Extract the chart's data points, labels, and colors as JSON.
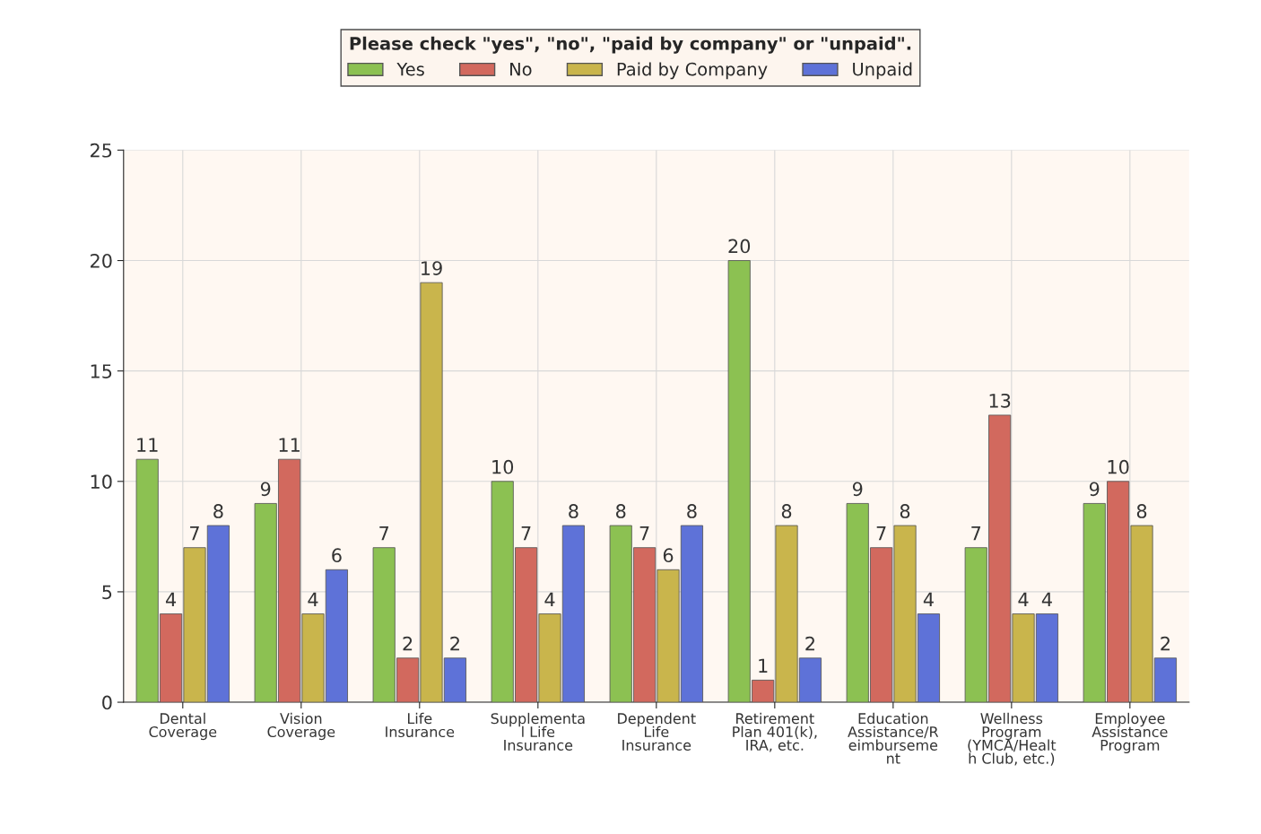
{
  "chart_data": {
    "type": "bar",
    "legend_title": "Please check \"yes\", \"no\", \"paid by company\" or \"unpaid\".",
    "categories": [
      "Dental\nCoverage",
      "Vision\nCoverage",
      "Life\nInsurance",
      "Supplementa\nl Life\nInsurance",
      "Dependent\nLife\nInsurance",
      "Retirement\nPlan 401(k),\nIRA, etc.",
      "Education\nAssistance/R\neimburseme\nnt",
      "Wellness\nProgram\n(YMCA/Healt\nh Club, etc.)",
      "Employee\nAssistance\nProgram"
    ],
    "series": [
      {
        "name": "Yes",
        "color": "#8cc152",
        "values": [
          11,
          9,
          7,
          10,
          8,
          20,
          9,
          7,
          9
        ]
      },
      {
        "name": "No",
        "color": "#d2695e",
        "values": [
          4,
          11,
          2,
          7,
          7,
          1,
          7,
          13,
          10
        ]
      },
      {
        "name": "Paid by Company",
        "color": "#c9b54c",
        "values": [
          7,
          4,
          19,
          4,
          6,
          8,
          8,
          4,
          8
        ]
      },
      {
        "name": "Unpaid",
        "color": "#5e72d8",
        "values": [
          8,
          6,
          2,
          8,
          8,
          2,
          4,
          4,
          2
        ]
      }
    ],
    "ylim": [
      0,
      25
    ],
    "yticks": [
      0,
      5,
      10,
      15,
      20,
      25
    ],
    "grid": true,
    "legend": "top",
    "data_labels": true
  }
}
